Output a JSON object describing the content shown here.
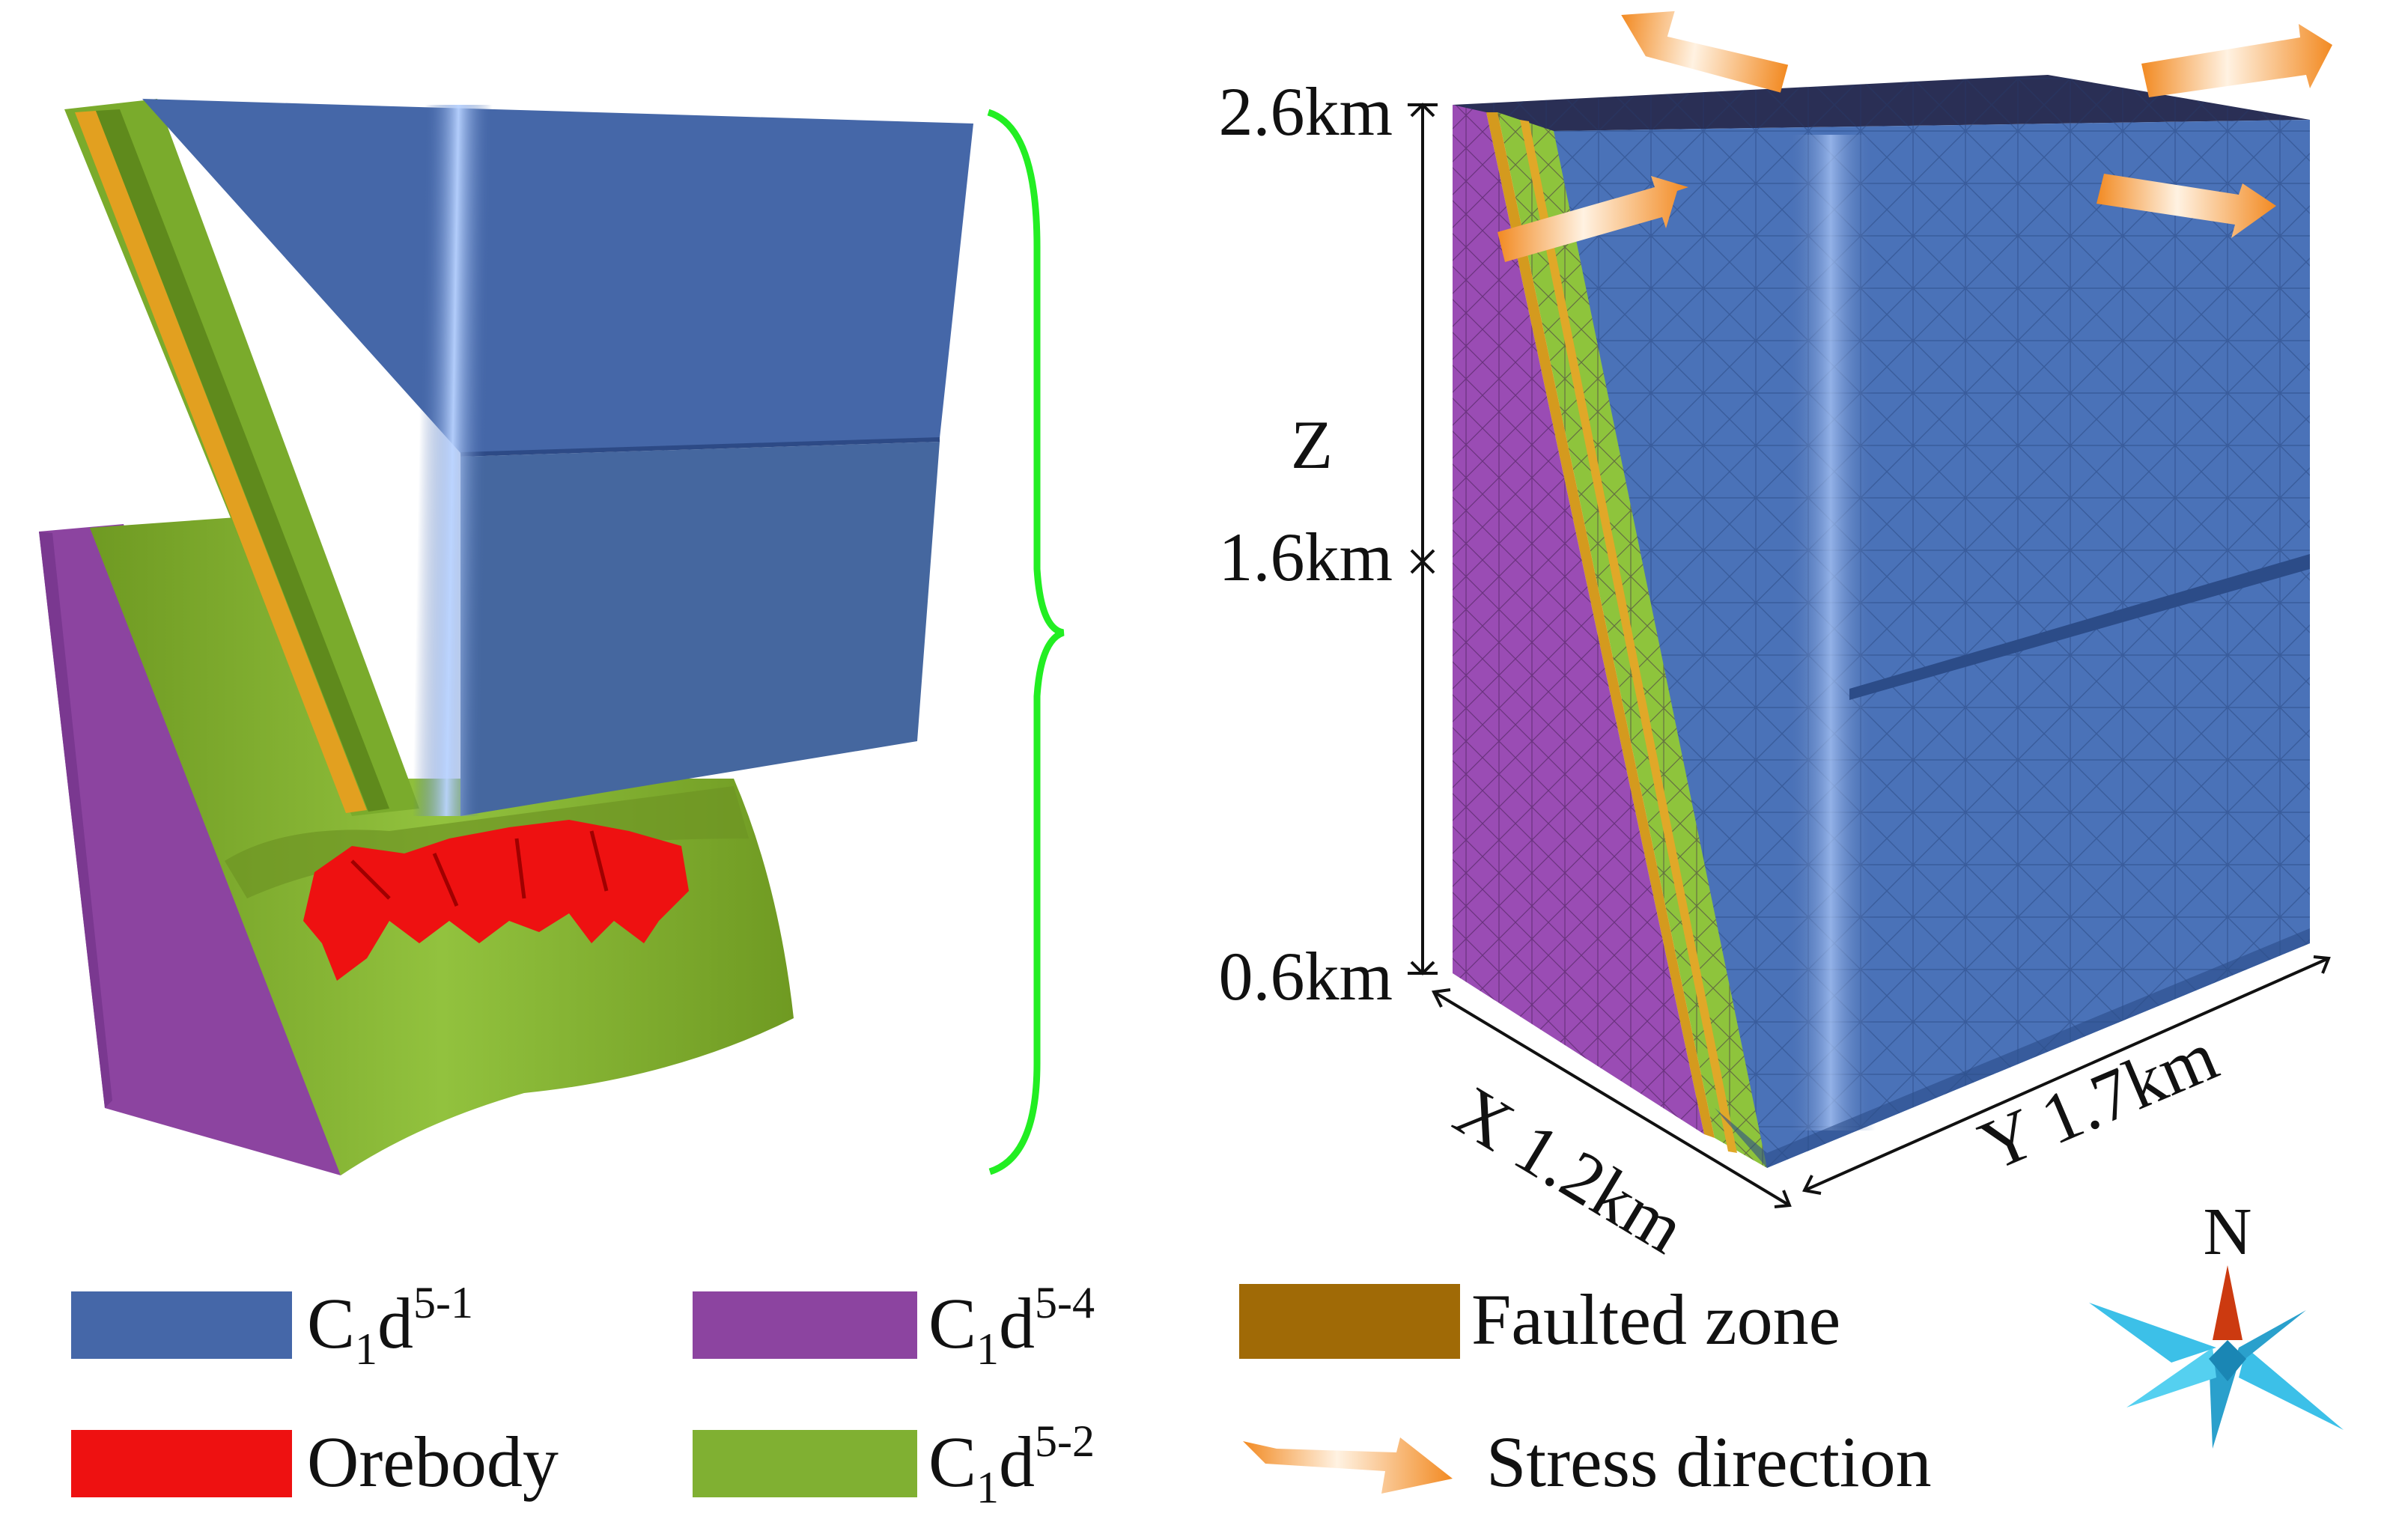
{
  "axes": {
    "z_top": "2.6km",
    "z_mid": "1.6km",
    "z_bot": "0.6km",
    "z_axis": "Z",
    "x_axis": "X 1.2km",
    "y_axis": "Y 1.7km"
  },
  "compass": {
    "north": "N"
  },
  "legend": {
    "c1d51": {
      "base": "C",
      "sub": "1",
      "letter": "d",
      "sup": "5-1",
      "color": "#4567a8"
    },
    "orebody": {
      "label": "Orebody",
      "color": "#ee1111"
    },
    "c1d54": {
      "base": "C",
      "sub": "1",
      "letter": "d",
      "sup": "5-4",
      "color": "#8c44a0"
    },
    "c1d52": {
      "base": "C",
      "sub": "1",
      "letter": "d",
      "sup": "5-2",
      "color": "#80b032"
    },
    "faulted": {
      "label": "Faulted zone",
      "color": "#a06a06"
    },
    "stress": {
      "label": "Stress direction",
      "color": "#f49a3c"
    }
  }
}
